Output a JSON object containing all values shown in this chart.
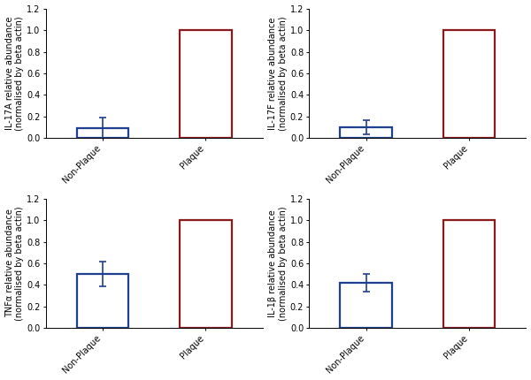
{
  "subplots": [
    {
      "ylabel": "IL-17A relative abundance\n(normalised by beta actin)",
      "categories": [
        "Non-Plaque",
        "Plaque"
      ],
      "values": [
        0.09,
        1.0
      ],
      "errors": [
        0.105,
        0.0
      ],
      "bar_colors": [
        "#1f3f8f",
        "#8b1a1a"
      ],
      "ylim": [
        0,
        1.2
      ],
      "yticks": [
        0.0,
        0.2,
        0.4,
        0.6,
        0.8,
        1.0,
        1.2
      ]
    },
    {
      "ylabel": "IL-17F relative abundance\n(normalised by beta actin)",
      "categories": [
        "Non-Plaque",
        "Plaque"
      ],
      "values": [
        0.1,
        1.0
      ],
      "errors": [
        0.065,
        0.0
      ],
      "bar_colors": [
        "#1f3f8f",
        "#8b1a1a"
      ],
      "ylim": [
        0,
        1.2
      ],
      "yticks": [
        0.0,
        0.2,
        0.4,
        0.6,
        0.8,
        1.0,
        1.2
      ]
    },
    {
      "ylabel": "TNFα relative abundance\n(normalised by beta actin)",
      "categories": [
        "Non-Plaque",
        "Plaque"
      ],
      "values": [
        0.5,
        1.0
      ],
      "errors": [
        0.115,
        0.0
      ],
      "bar_colors": [
        "#1f3f8f",
        "#8b1a1a"
      ],
      "ylim": [
        0,
        1.2
      ],
      "yticks": [
        0.0,
        0.2,
        0.4,
        0.6,
        0.8,
        1.0,
        1.2
      ]
    },
    {
      "ylabel": "IL-1β relative abundance\n(normalised by beta actin)",
      "categories": [
        "Non-Plaque",
        "Plaque"
      ],
      "values": [
        0.42,
        1.0
      ],
      "errors": [
        0.085,
        0.0
      ],
      "bar_colors": [
        "#1f3f8f",
        "#8b1a1a"
      ],
      "ylim": [
        0,
        1.2
      ],
      "yticks": [
        0.0,
        0.2,
        0.4,
        0.6,
        0.8,
        1.0,
        1.2
      ]
    }
  ],
  "label_fontsize": 7.0,
  "tick_fontsize": 7.0,
  "bar_width": 0.5,
  "background_color": "#ffffff",
  "elinewidth": 1.2,
  "ecapsize": 3.0,
  "bar_linewidth": 1.6
}
